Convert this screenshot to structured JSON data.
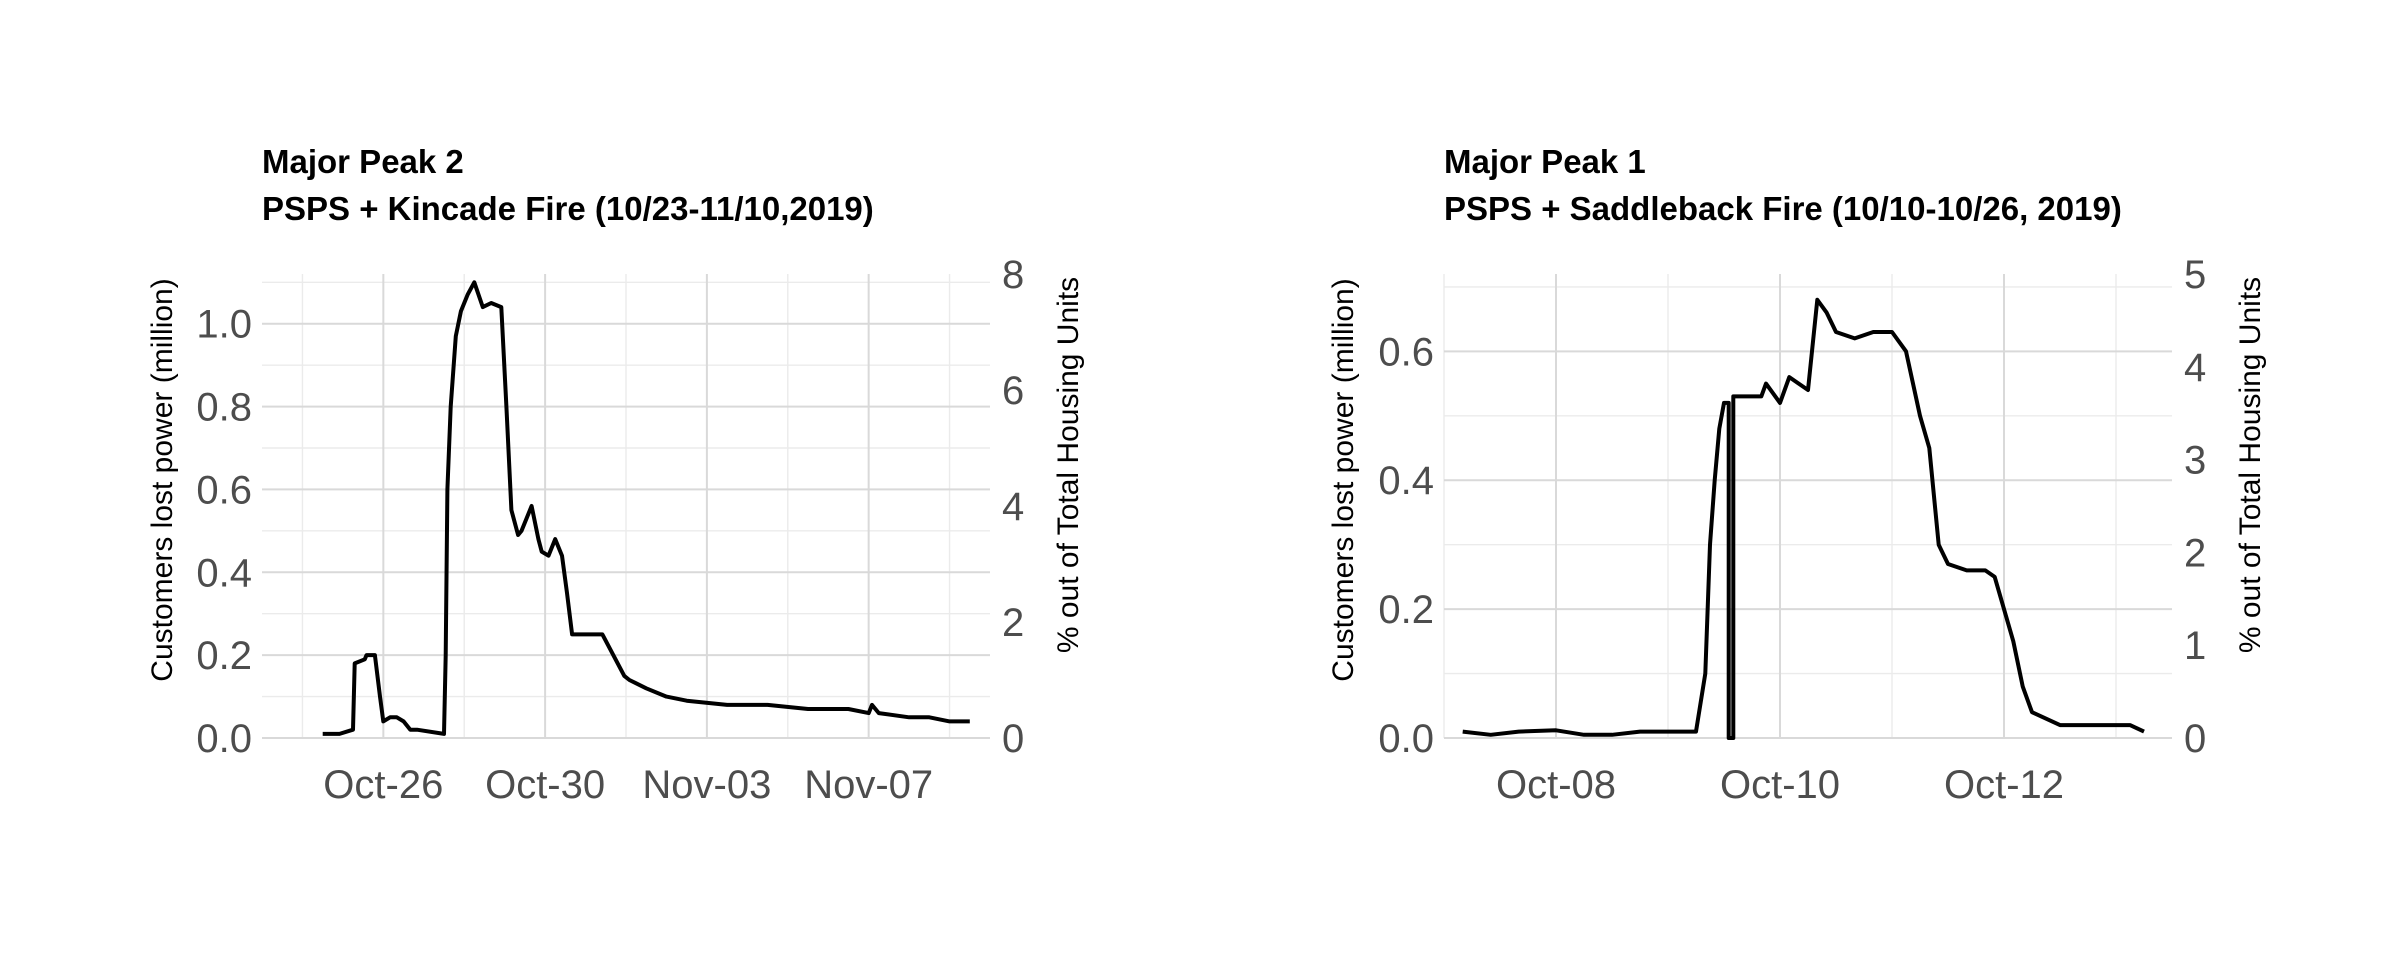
{
  "chart_data": [
    {
      "type": "line",
      "title": "Major Peak 2",
      "subtitle": "PSPS + Kincade Fire (10/23-11/10,2019)",
      "ylabel": "Customers lost power (million)",
      "y2label": "% out of Total Housing Units",
      "xlim": [
        "2019-10-23T00:00",
        "2019-11-10T00:00"
      ],
      "ylim": [
        0,
        1.12
      ],
      "y2lim": [
        0,
        8
      ],
      "x_ticks": [
        {
          "date": "2019-10-26",
          "label": "Oct-26"
        },
        {
          "date": "2019-10-30",
          "label": "Oct-30"
        },
        {
          "date": "2019-11-03",
          "label": "Nov-03"
        },
        {
          "date": "2019-11-07",
          "label": "Nov-07"
        }
      ],
      "y_ticks": [
        "0.0",
        "0.2",
        "0.4",
        "0.6",
        "0.8",
        "1.0"
      ],
      "y2_ticks": [
        "0",
        "2",
        "4",
        "6",
        "8"
      ],
      "grid": true,
      "series": [
        {
          "x": [
            "2019-10-24T12:00",
            "2019-10-24T22:00",
            "2019-10-25T06:00",
            "2019-10-25T07:00",
            "2019-10-25T13:00",
            "2019-10-25T14:00",
            "2019-10-25T19:00",
            "2019-10-25T22:00",
            "2019-10-26T00:00",
            "2019-10-26T04:00",
            "2019-10-26T08:00",
            "2019-10-26T12:00",
            "2019-10-26T16:00",
            "2019-10-26T20:00",
            "2019-10-27T12:00",
            "2019-10-27T13:00",
            "2019-10-27T14:00",
            "2019-10-27T16:00",
            "2019-10-27T19:00",
            "2019-10-27T22:00",
            "2019-10-28T02:00",
            "2019-10-28T06:00",
            "2019-10-28T11:00",
            "2019-10-28T16:00",
            "2019-10-28T22:00",
            "2019-10-29T01:00",
            "2019-10-29T04:00",
            "2019-10-29T08:00",
            "2019-10-29T10:00",
            "2019-10-29T16:00",
            "2019-10-29T20:00",
            "2019-10-29T22:00",
            "2019-10-30T02:00",
            "2019-10-30T06:00",
            "2019-10-30T10:00",
            "2019-10-30T13:00",
            "2019-10-30T16:00",
            "2019-10-30T20:00",
            "2019-10-31T02:00",
            "2019-10-31T10:00",
            "2019-10-31T23:00",
            "2019-11-01T02:00",
            "2019-11-01T12:00",
            "2019-11-02T00:00",
            "2019-11-02T12:00",
            "2019-11-03T12:00",
            "2019-11-04T12:00",
            "2019-11-05T12:00",
            "2019-11-06T12:00",
            "2019-11-07T00:00",
            "2019-11-07T02:00",
            "2019-11-07T06:00",
            "2019-11-08T00:00",
            "2019-11-08T12:00",
            "2019-11-09T00:00",
            "2019-11-09T12:00"
          ],
          "y": [
            0.01,
            0.01,
            0.02,
            0.18,
            0.19,
            0.2,
            0.2,
            0.1,
            0.04,
            0.05,
            0.05,
            0.04,
            0.02,
            0.02,
            0.01,
            0.2,
            0.6,
            0.8,
            0.97,
            1.03,
            1.07,
            1.1,
            1.04,
            1.05,
            1.04,
            0.8,
            0.55,
            0.49,
            0.5,
            0.56,
            0.48,
            0.45,
            0.44,
            0.48,
            0.44,
            0.35,
            0.25,
            0.25,
            0.25,
            0.25,
            0.15,
            0.14,
            0.12,
            0.1,
            0.09,
            0.08,
            0.08,
            0.07,
            0.07,
            0.06,
            0.08,
            0.06,
            0.05,
            0.05,
            0.04,
            0.04
          ]
        }
      ]
    },
    {
      "type": "line",
      "title": "Major Peak 1",
      "subtitle": "PSPS + Saddleback Fire (10/10-10/26, 2019)",
      "ylabel": "Customers lost power (million)",
      "y2label": "% out of Total Housing Units",
      "xlim": [
        "2019-10-07T00:00",
        "2019-10-13T12:00"
      ],
      "ylim": [
        0,
        0.72
      ],
      "y2lim": [
        0,
        5
      ],
      "x_ticks": [
        {
          "date": "2019-10-08",
          "label": "Oct-08"
        },
        {
          "date": "2019-10-10",
          "label": "Oct-10"
        },
        {
          "date": "2019-10-12",
          "label": "Oct-12"
        }
      ],
      "y_ticks": [
        "0.0",
        "0.2",
        "0.4",
        "0.6"
      ],
      "y2_ticks": [
        "0",
        "1",
        "2",
        "3",
        "4",
        "5"
      ],
      "grid": true,
      "series": [
        {
          "x": [
            "2019-10-07T04:00",
            "2019-10-07T10:00",
            "2019-10-07T16:00",
            "2019-10-08T00:00",
            "2019-10-08T06:00",
            "2019-10-08T12:00",
            "2019-10-08T18:00",
            "2019-10-09T00:00",
            "2019-10-09T06:00",
            "2019-10-09T08:00",
            "2019-10-09T09:00",
            "2019-10-09T10:00",
            "2019-10-09T11:00",
            "2019-10-09T12:00",
            "2019-10-09T13:00",
            "2019-10-09T13:00",
            "2019-10-09T14:00",
            "2019-10-09T14:00",
            "2019-10-09T20:00",
            "2019-10-09T21:00",
            "2019-10-10T00:00",
            "2019-10-10T02:00",
            "2019-10-10T04:00",
            "2019-10-10T06:00",
            "2019-10-10T08:00",
            "2019-10-10T10:00",
            "2019-10-10T12:00",
            "2019-10-10T16:00",
            "2019-10-10T20:00",
            "2019-10-11T00:00",
            "2019-10-11T03:00",
            "2019-10-11T06:00",
            "2019-10-11T08:00",
            "2019-10-11T10:00",
            "2019-10-11T12:00",
            "2019-10-11T16:00",
            "2019-10-11T20:00",
            "2019-10-11T22:00",
            "2019-10-12T02:00",
            "2019-10-12T04:00",
            "2019-10-12T06:00",
            "2019-10-12T12:00",
            "2019-10-12T18:00",
            "2019-10-13T00:00",
            "2019-10-13T03:00",
            "2019-10-13T06:00"
          ],
          "y": [
            0.01,
            0.005,
            0.01,
            0.012,
            0.005,
            0.005,
            0.01,
            0.01,
            0.01,
            0.1,
            0.3,
            0.4,
            0.48,
            0.52,
            0.52,
            0.0,
            0.0,
            0.53,
            0.53,
            0.55,
            0.52,
            0.56,
            0.55,
            0.54,
            0.68,
            0.66,
            0.63,
            0.62,
            0.63,
            0.63,
            0.6,
            0.5,
            0.45,
            0.3,
            0.27,
            0.26,
            0.26,
            0.25,
            0.15,
            0.08,
            0.04,
            0.02,
            0.02,
            0.02,
            0.02,
            0.01
          ]
        }
      ]
    }
  ]
}
